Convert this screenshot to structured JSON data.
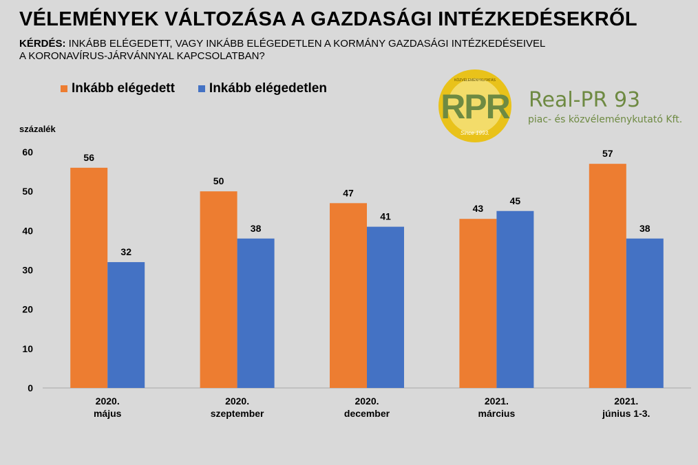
{
  "title": "VÉLEMÉNYEK VÁLTOZÁSA A GAZDASÁGI INTÉZKEDÉSEKRŐL",
  "question": {
    "label": "KÉRDÉS:",
    "line1": " INKÁBB  ELÉGEDETT, VAGY INKÁBB ELÉGEDETLEN A  KORMÁNY GAZDASÁGI INTÉZKEDÉSEIVEL",
    "line2": "A KORONAVÍRUS-JÁRVÁNNYAL  KAPCSOLATBAN?"
  },
  "logo": {
    "company": "Real-PR 93",
    "tagline": "piac- és közvéleménykutató Kft.",
    "badge_text": "RPR",
    "ring_top": "KÖZVÉLEMÉNYKUTATÁS",
    "ring_bottom": "Since 1993."
  },
  "colors": {
    "satisfied": "#ed7d31",
    "dissatisfied": "#4472c4",
    "background": "#d9d9d9",
    "logo_green": "#6e8a42",
    "logo_gold": "#e9c21a"
  },
  "chart_data": {
    "type": "bar",
    "ylabel": "százalék",
    "xlabel": "",
    "ylim": [
      0,
      60
    ],
    "yticks": [
      0,
      10,
      20,
      30,
      40,
      50,
      60
    ],
    "grid": false,
    "legend_position": "top-left",
    "categories": [
      [
        "2020.",
        "május"
      ],
      [
        "2020.",
        "szeptember"
      ],
      [
        "2020.",
        "december"
      ],
      [
        "2021.",
        "március"
      ],
      [
        "2021.",
        "június 1-3."
      ]
    ],
    "series": [
      {
        "name": "Inkább elégedett",
        "color": "#ed7d31",
        "values": [
          56,
          50,
          47,
          43,
          57
        ]
      },
      {
        "name": "Inkább elégedetlen",
        "color": "#4472c4",
        "values": [
          32,
          38,
          41,
          45,
          38
        ]
      }
    ]
  }
}
